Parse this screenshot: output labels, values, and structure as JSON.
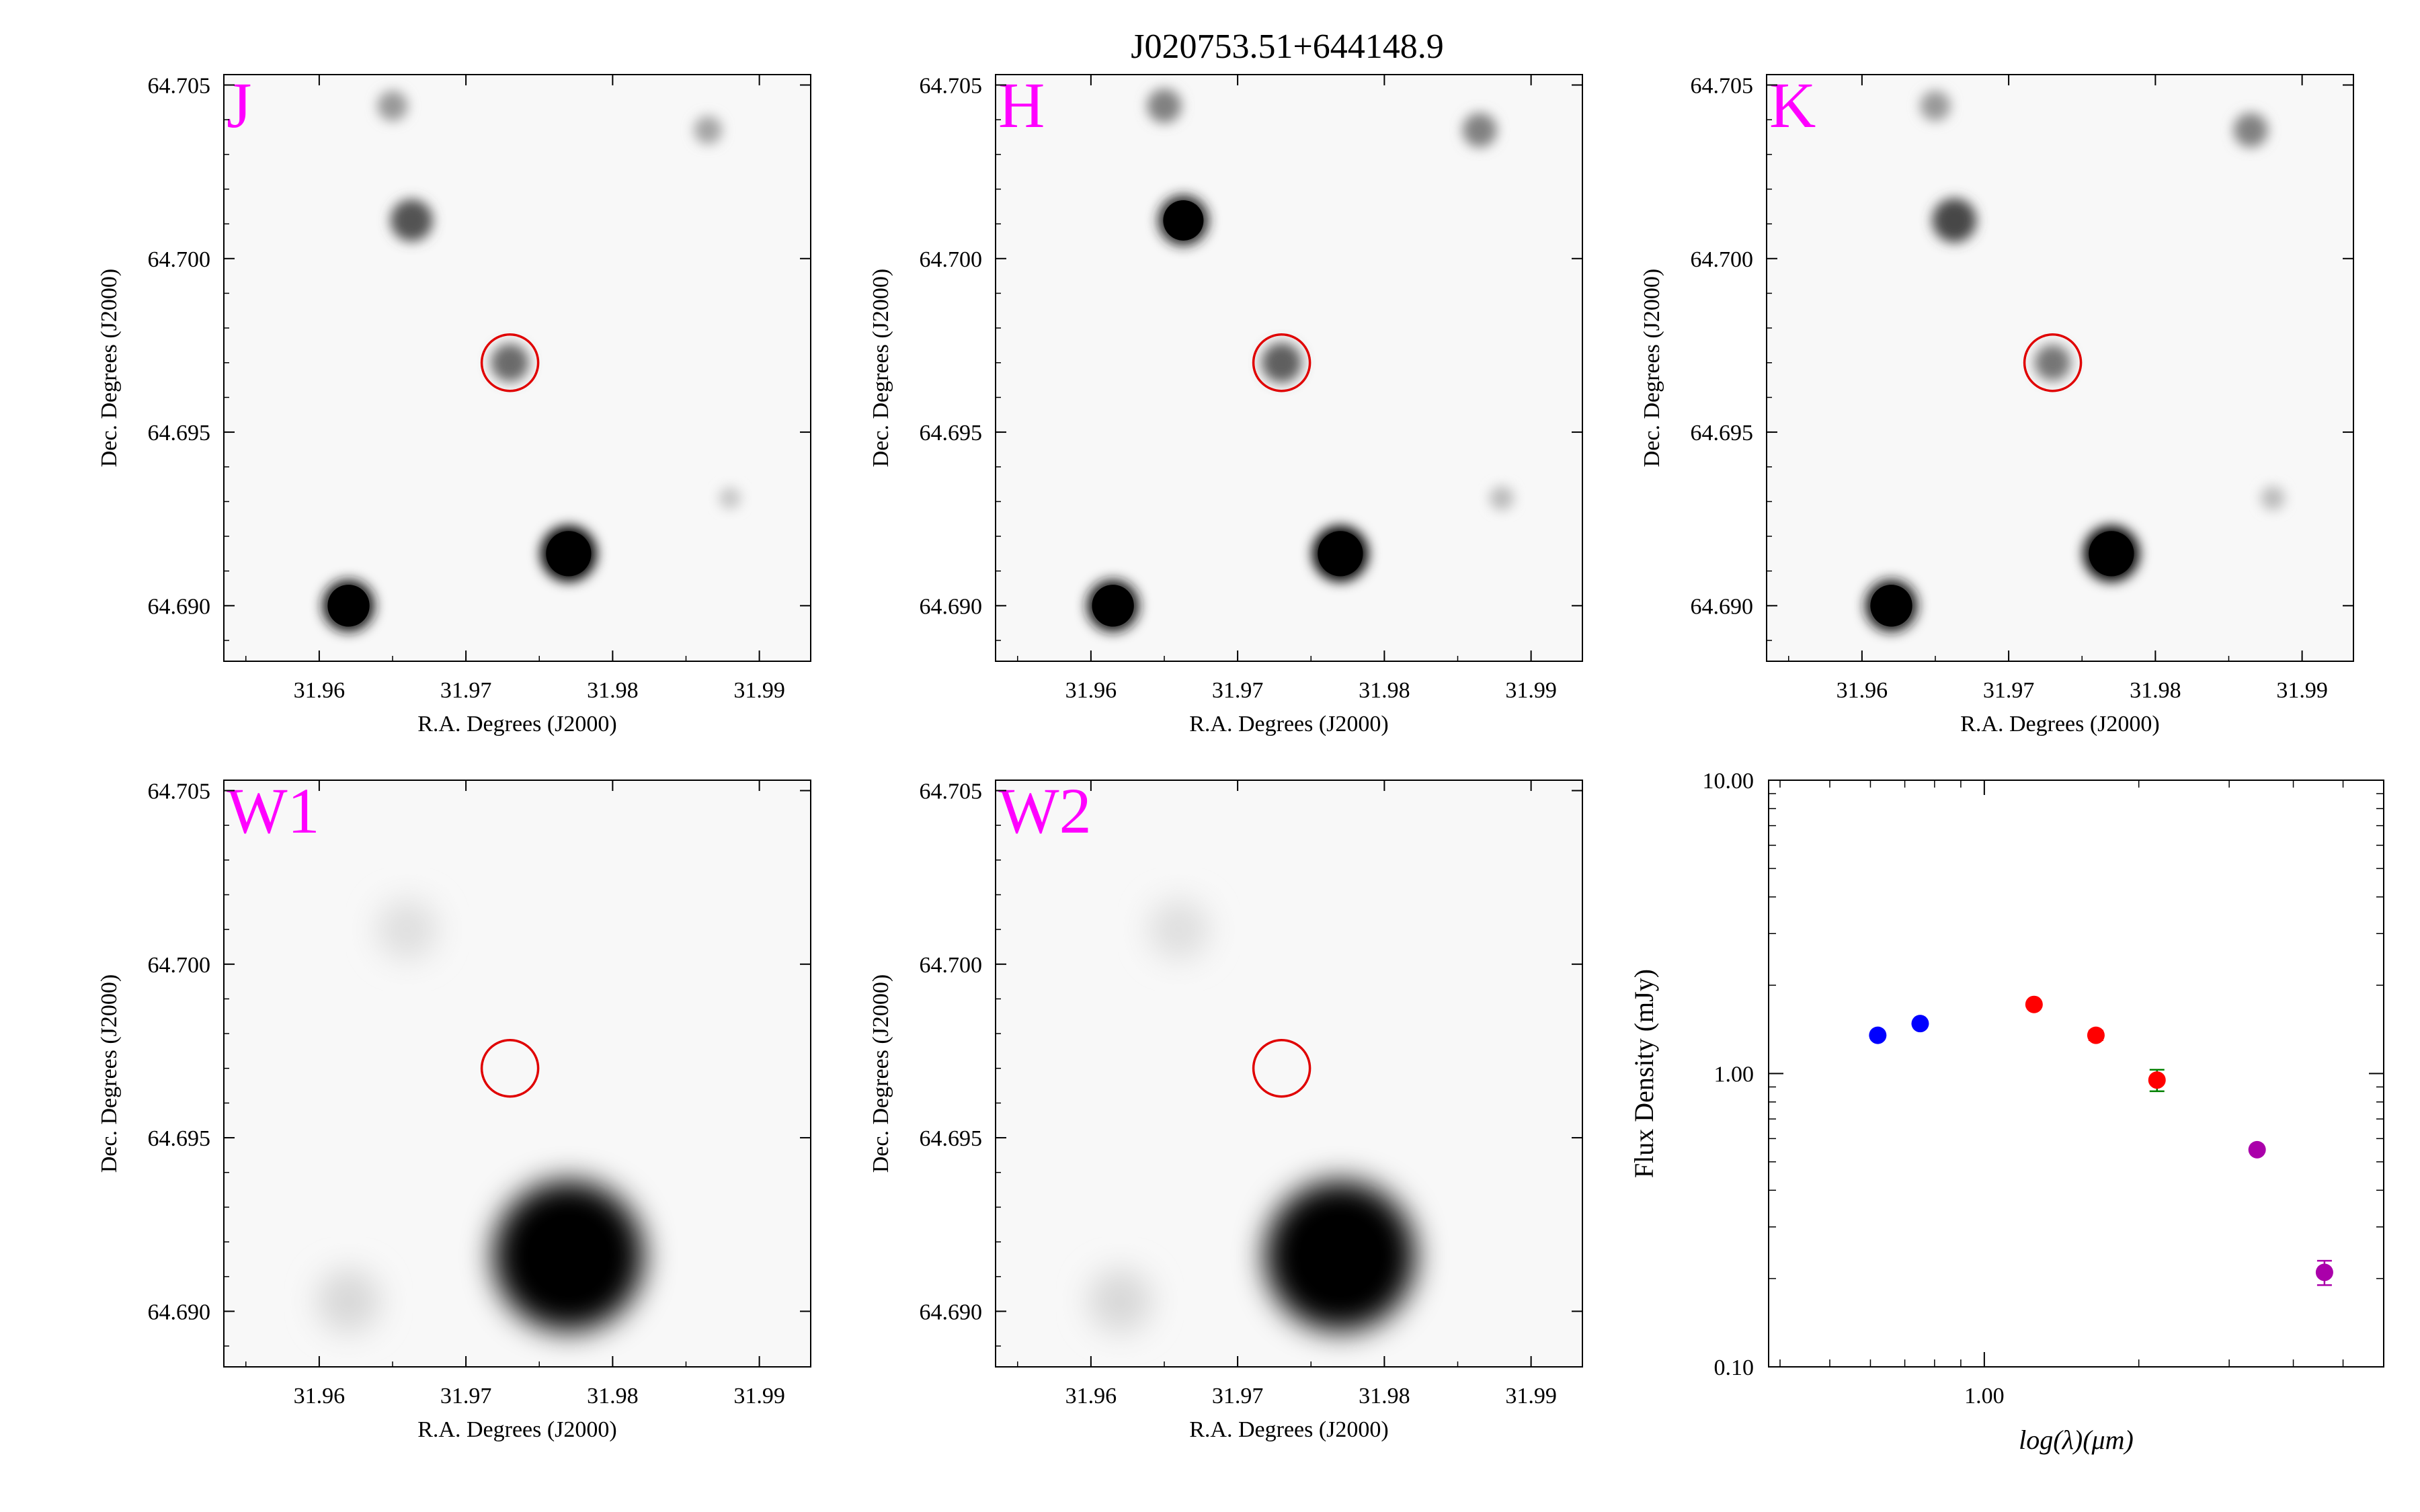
{
  "figure": {
    "title": "J020753.51+644148.9"
  },
  "chart_data": [
    {
      "type": "image",
      "band_label": "J",
      "xlabel": "R.A. Degrees (J2000)",
      "ylabel": "Dec. Degrees (J2000)",
      "xlim": [
        31.9535,
        31.9935
      ],
      "ylim": [
        64.6884,
        64.7053
      ],
      "xticks": [
        "31.96",
        "31.97",
        "31.98",
        "31.99"
      ],
      "yticks": [
        "64.690",
        "64.695",
        "64.700",
        "64.705"
      ],
      "target": {
        "ra": 31.973,
        "dec": 64.697
      },
      "sources": [
        {
          "ra": 31.965,
          "dec": 64.7044,
          "mag": 0.35
        },
        {
          "ra": 31.9663,
          "dec": 64.7011,
          "mag": 0.65
        },
        {
          "ra": 31.973,
          "dec": 64.697,
          "mag": 0.55
        },
        {
          "ra": 31.977,
          "dec": 64.6915,
          "mag": 1.0
        },
        {
          "ra": 31.962,
          "dec": 64.69,
          "mag": 0.9
        },
        {
          "ra": 31.9865,
          "dec": 64.7037,
          "mag": 0.3
        },
        {
          "ra": 31.988,
          "dec": 64.6931,
          "mag": 0.15
        }
      ]
    },
    {
      "type": "image",
      "band_label": "H",
      "xlabel": "R.A. Degrees (J2000)",
      "ylabel": "Dec. Degrees (J2000)",
      "xlim": [
        31.9535,
        31.9935
      ],
      "ylim": [
        64.6884,
        64.7053
      ],
      "xticks": [
        "31.96",
        "31.97",
        "31.98",
        "31.99"
      ],
      "yticks": [
        "64.690",
        "64.695",
        "64.700",
        "64.705"
      ],
      "target": {
        "ra": 31.973,
        "dec": 64.697
      },
      "sources": [
        {
          "ra": 31.965,
          "dec": 64.7044,
          "mag": 0.45
        },
        {
          "ra": 31.9663,
          "dec": 64.7011,
          "mag": 0.85
        },
        {
          "ra": 31.973,
          "dec": 64.697,
          "mag": 0.6
        },
        {
          "ra": 31.977,
          "dec": 64.6915,
          "mag": 1.0
        },
        {
          "ra": 31.9615,
          "dec": 64.69,
          "mag": 0.9
        },
        {
          "ra": 31.9865,
          "dec": 64.7037,
          "mag": 0.45
        },
        {
          "ra": 31.988,
          "dec": 64.6931,
          "mag": 0.2
        }
      ]
    },
    {
      "type": "image",
      "band_label": "K",
      "xlabel": "R.A. Degrees (J2000)",
      "ylabel": "Dec. Degrees (J2000)",
      "xlim": [
        31.9535,
        31.9935
      ],
      "ylim": [
        64.6884,
        64.7053
      ],
      "xticks": [
        "31.96",
        "31.97",
        "31.98",
        "31.99"
      ],
      "yticks": [
        "64.690",
        "64.695",
        "64.700",
        "64.705"
      ],
      "target": {
        "ra": 31.973,
        "dec": 64.697
      },
      "sources": [
        {
          "ra": 31.965,
          "dec": 64.7044,
          "mag": 0.35
        },
        {
          "ra": 31.9663,
          "dec": 64.7011,
          "mag": 0.7
        },
        {
          "ra": 31.973,
          "dec": 64.697,
          "mag": 0.5
        },
        {
          "ra": 31.977,
          "dec": 64.6915,
          "mag": 1.0
        },
        {
          "ra": 31.962,
          "dec": 64.69,
          "mag": 0.9
        },
        {
          "ra": 31.9865,
          "dec": 64.7037,
          "mag": 0.45
        },
        {
          "ra": 31.988,
          "dec": 64.6931,
          "mag": 0.2
        }
      ]
    },
    {
      "type": "image",
      "band_label": "W1",
      "xlabel": "R.A. Degrees (J2000)",
      "ylabel": "Dec. Degrees (J2000)",
      "xlim": [
        31.9535,
        31.9935
      ],
      "ylim": [
        64.6884,
        64.7053
      ],
      "xticks": [
        "31.96",
        "31.97",
        "31.98",
        "31.99"
      ],
      "yticks": [
        "64.690",
        "64.695",
        "64.700",
        "64.705"
      ],
      "target": {
        "ra": 31.973,
        "dec": 64.697
      },
      "sources": [
        {
          "ra": 31.977,
          "dec": 64.6916,
          "mag": 1.0
        },
        {
          "ra": 31.962,
          "dec": 64.6903,
          "mag": 0.08
        },
        {
          "ra": 31.966,
          "dec": 64.701,
          "mag": 0.05
        }
      ]
    },
    {
      "type": "image",
      "band_label": "W2",
      "xlabel": "R.A. Degrees (J2000)",
      "ylabel": "Dec. Degrees (J2000)",
      "xlim": [
        31.9535,
        31.9935
      ],
      "ylim": [
        64.6884,
        64.7053
      ],
      "xticks": [
        "31.96",
        "31.97",
        "31.98",
        "31.99"
      ],
      "yticks": [
        "64.690",
        "64.695",
        "64.700",
        "64.705"
      ],
      "target": {
        "ra": 31.973,
        "dec": 64.697
      },
      "sources": [
        {
          "ra": 31.977,
          "dec": 64.6916,
          "mag": 1.0
        },
        {
          "ra": 31.962,
          "dec": 64.6903,
          "mag": 0.08
        },
        {
          "ra": 31.966,
          "dec": 64.701,
          "mag": 0.05
        }
      ]
    },
    {
      "type": "scatter",
      "xlabel": "log(λ)(μm)",
      "ylabel": "Flux Density (mJy)",
      "xscale": "log",
      "yscale": "log",
      "xlim": [
        0.38,
        6.0
      ],
      "ylim": [
        0.1,
        10.0
      ],
      "yticks": [
        "0.10",
        "1.00",
        "10.00"
      ],
      "xticks": [
        "1.00"
      ],
      "points": [
        {
          "x": 0.62,
          "y": 1.35,
          "yerr": 0.0,
          "color": "#0000ff"
        },
        {
          "x": 0.75,
          "y": 1.48,
          "yerr": 0.0,
          "color": "#0000ff"
        },
        {
          "x": 1.25,
          "y": 1.72,
          "yerr": 0.03,
          "color": "#ff0000"
        },
        {
          "x": 1.65,
          "y": 1.35,
          "yerr": 0.05,
          "color": "#ff0000"
        },
        {
          "x": 2.17,
          "y": 0.95,
          "yerr": 0.08,
          "color": "#ff0000"
        },
        {
          "x": 3.4,
          "y": 0.55,
          "yerr": 0.0,
          "color": "#aa00aa"
        },
        {
          "x": 4.6,
          "y": 0.21,
          "yerr": 0.02,
          "color": "#aa00aa"
        }
      ]
    }
  ]
}
